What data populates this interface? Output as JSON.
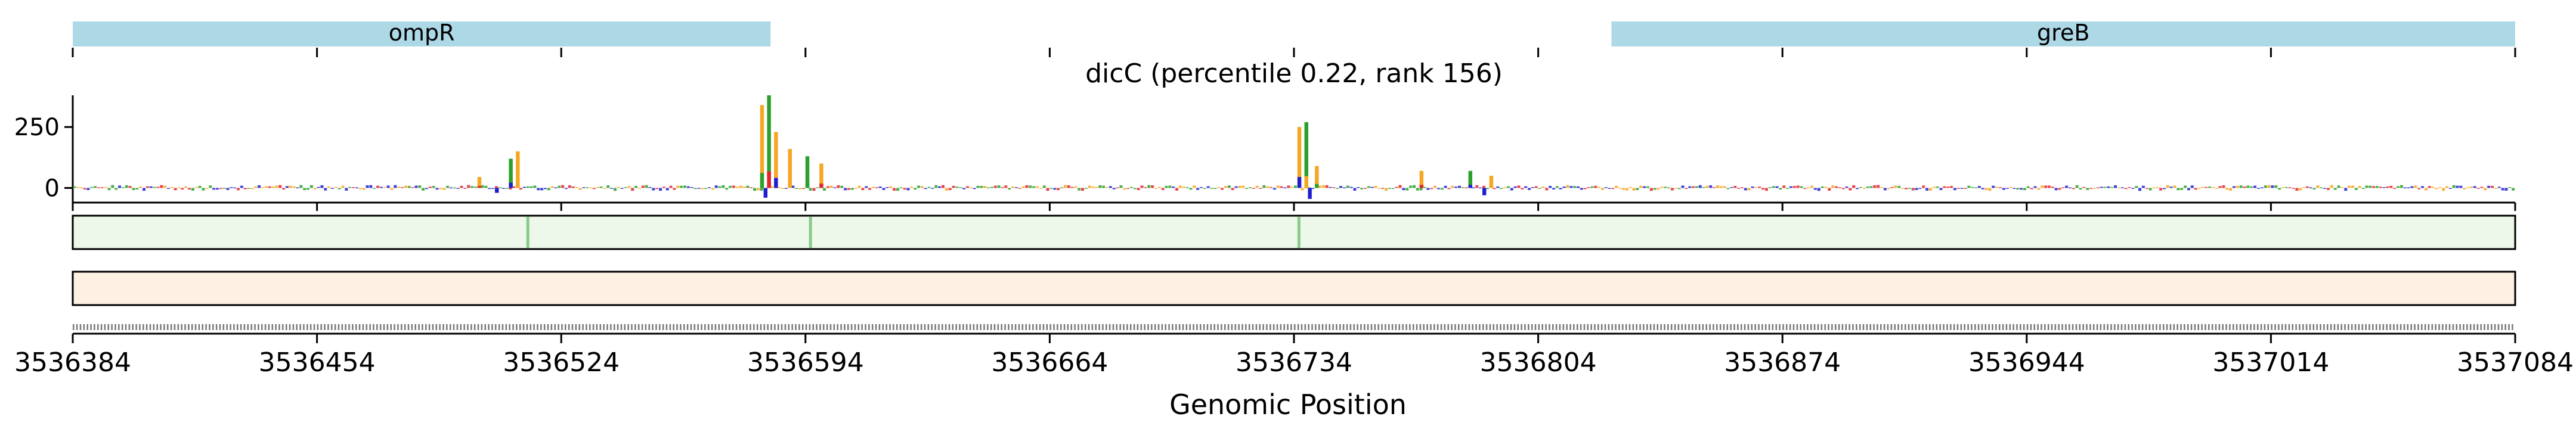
{
  "chart_data": {
    "type": "sequence-logo-track",
    "title": "dicC (percentile 0.22, rank 156)",
    "xlabel": "Genomic Position",
    "ylabel": "",
    "x_range": [
      3536384,
      3537084
    ],
    "x_ticks": [
      3536384,
      3536454,
      3536524,
      3536594,
      3536664,
      3536734,
      3536804,
      3536874,
      3536944,
      3537014,
      3537084
    ],
    "y_ticks": [
      0,
      250
    ],
    "ylim": [
      -60,
      380
    ],
    "genes": [
      {
        "name": "ompR",
        "start": 3536384,
        "end": 3536584
      },
      {
        "name": "greB",
        "start": 3536825,
        "end": 3537084
      }
    ],
    "peaks": [
      {
        "position": 3536500,
        "value": 45
      },
      {
        "position": 3536509,
        "value": 120
      },
      {
        "position": 3536511,
        "value": 150
      },
      {
        "position": 3536581,
        "value": 340
      },
      {
        "position": 3536583,
        "value": 380
      },
      {
        "position": 3536585,
        "value": 230
      },
      {
        "position": 3536589,
        "value": 160
      },
      {
        "position": 3536594,
        "value": 130
      },
      {
        "position": 3536598,
        "value": 100
      },
      {
        "position": 3536735,
        "value": 250
      },
      {
        "position": 3536737,
        "value": 270
      },
      {
        "position": 3536740,
        "value": 90
      },
      {
        "position": 3536770,
        "value": 70
      },
      {
        "position": 3536784,
        "value": 70
      },
      {
        "position": 3536790,
        "value": 50
      }
    ],
    "dips": [
      {
        "position": 3536582,
        "value": -40
      },
      {
        "position": 3536738,
        "value": -45
      },
      {
        "position": 3536505,
        "value": -20
      },
      {
        "position": 3536788,
        "value": -30
      }
    ],
    "green_track_marks": [
      3536514,
      3536595,
      3536735
    ],
    "base_colors": {
      "A": "#2ca02c",
      "C": "#1f1fcf",
      "G": "#f5a623",
      "T": "#e3242b"
    },
    "gene_color": "#add8e6",
    "green_track_color": "#eef8ea",
    "orange_track_color": "#fdf1e4"
  }
}
